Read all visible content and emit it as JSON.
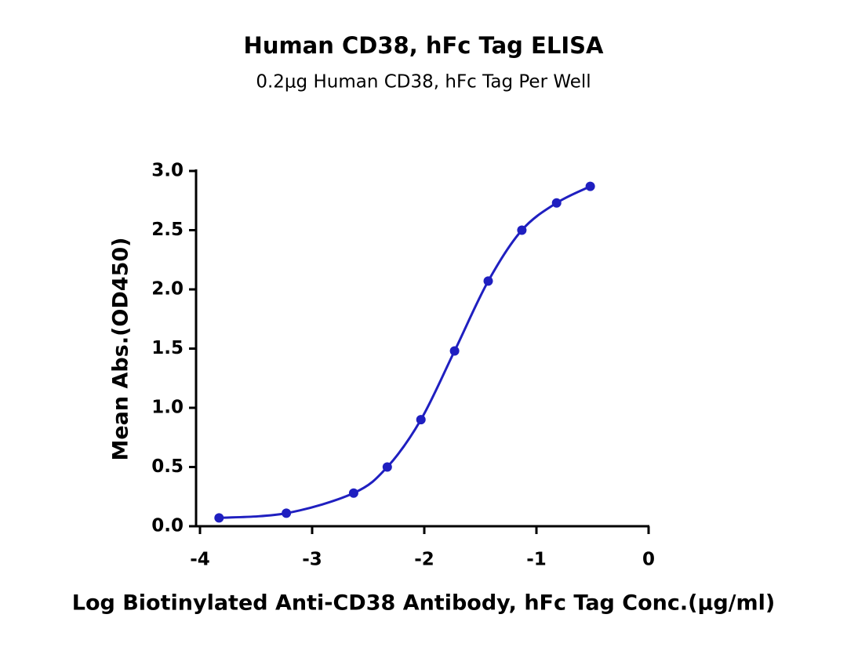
{
  "chart_data": {
    "type": "scatter",
    "title": "Human CD38, hFc Tag ELISA",
    "subtitle": "0.2μg Human CD38, hFc Tag Per Well",
    "x_label": "Log Biotinylated Anti-CD38 Antibody, hFc Tag Conc.(μg/ml)",
    "y_label": "Mean Abs.(OD450)",
    "x": [
      -3.83,
      -3.23,
      -2.63,
      -2.33,
      -2.03,
      -1.73,
      -1.43,
      -1.13,
      -0.82,
      -0.52
    ],
    "values": [
      0.07,
      0.11,
      0.28,
      0.5,
      0.9,
      1.48,
      2.07,
      2.5,
      2.73,
      2.87
    ],
    "color": "#1f1fc0",
    "xlim": [
      -4,
      0
    ],
    "xticks": [
      -4,
      -3,
      -2,
      -1,
      0
    ],
    "ylim": [
      0,
      3
    ],
    "yticks": [
      {
        "value": 0,
        "label": "0.0"
      },
      0.5,
      {
        "value": 1,
        "label": "1.0"
      },
      1.5,
      {
        "value": 2,
        "label": "2.0"
      },
      2.5,
      {
        "value": 3,
        "label": "3.0"
      }
    ]
  }
}
